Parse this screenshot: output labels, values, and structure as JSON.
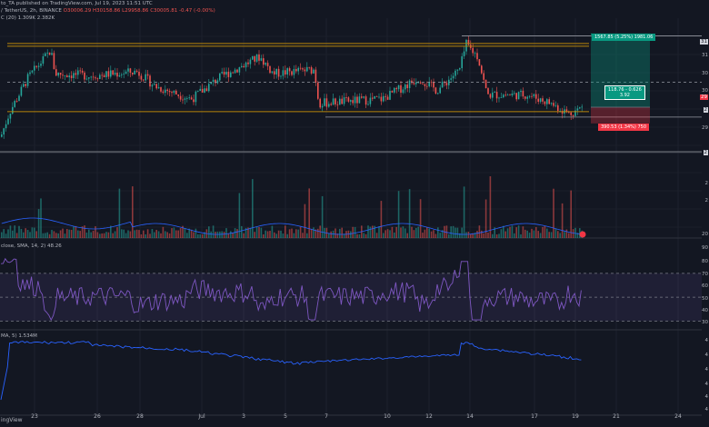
{
  "header": {
    "line1": "to_TA published on TradingView.com, Jul 19, 2023 11:51 UTC",
    "line2_prefix": "/ TetherUS, 2h, BINANCE",
    "o": "O30006.29",
    "h": "H30158.86",
    "l": "L29958.86",
    "c": "C30005.81",
    "chg": "-0.47 (-0.00%)",
    "line3": "C (20)  1.309K  2.382K"
  },
  "rsi_label": "close, SMA, 14, 2)  48.26",
  "obv_label": "MA, 5)  1.534M",
  "footer": "ingView",
  "position": {
    "target": "1567.85 (5.25%) 1981.06",
    "mid": "118.76 - 0.626",
    "mid2": "3.92",
    "stop": "390.53 (1.34%) 750"
  },
  "price_axis": [
    "31",
    "31",
    "30",
    "30",
    "29",
    "2",
    "29",
    "2",
    "2",
    "2",
    "20"
  ],
  "rsi_axis": [
    "90",
    "80",
    "70",
    "60",
    "50",
    "40",
    "30"
  ],
  "obv_axis": [
    "4",
    "4",
    "4",
    "4",
    "4",
    "4"
  ],
  "chart_data": {
    "type": "candlestick",
    "symbol": "BTC / TetherUS, 2h, BINANCE",
    "x_ticks": [
      "23",
      "26",
      "28",
      "Jul",
      "3",
      "5",
      "7",
      "10",
      "12",
      "14",
      "17",
      "19",
      "21",
      "24"
    ],
    "levels": {
      "range_top": 31450,
      "mid_dashed": 30600,
      "range_bottom": 29900,
      "target": 31740,
      "stop": 29620
    },
    "colors": {
      "up": "#26a69a",
      "down": "#ef5350",
      "range_line": "#b8860b",
      "rsi": "#7e57c2",
      "obv": "#2962ff",
      "volume_ma": "#2962ff"
    },
    "rsi_levels": {
      "upper": 70,
      "middle": 50,
      "lower": 30
    }
  }
}
